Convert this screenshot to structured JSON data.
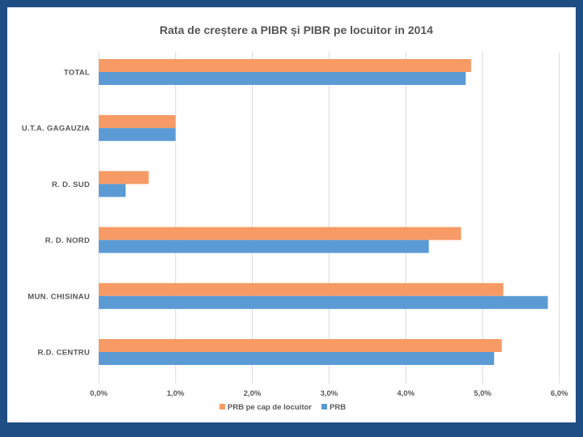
{
  "chart_data": {
    "type": "bar",
    "orientation": "horizontal",
    "title": "Rata de creștere a PIBR și PIBR pe locuitor in 2014",
    "categories": [
      "TOTAL",
      "U.T.A. GAGAUZIA",
      "R. D. SUD",
      "R. D. NORD",
      "MUN. CHISINAU",
      "R.D. CENTRU"
    ],
    "series": [
      {
        "name": "PRB pe cap de locuitor",
        "color": "#f79a65",
        "values": [
          4.85,
          1.0,
          0.65,
          4.72,
          5.27,
          5.25
        ]
      },
      {
        "name": "PRB",
        "color": "#5b9bd5",
        "values": [
          4.78,
          1.0,
          0.35,
          4.3,
          5.85,
          5.15
        ]
      }
    ],
    "xlim": [
      0,
      6
    ],
    "xticks": [
      "0,0%",
      "1,0%",
      "2,0%",
      "3,0%",
      "4,0%",
      "5,0%",
      "6,0%"
    ],
    "grid": true,
    "legend_position": "bottom"
  }
}
